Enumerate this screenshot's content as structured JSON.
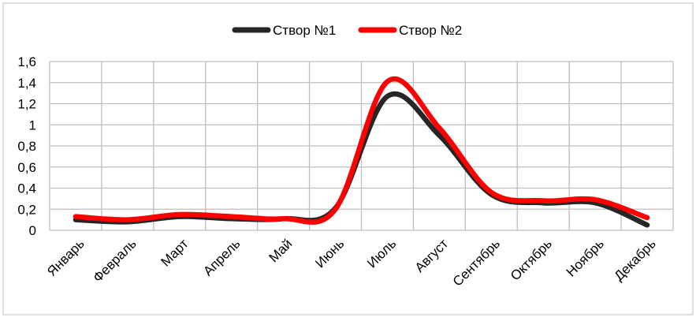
{
  "chart_data": {
    "type": "line",
    "title": "",
    "xlabel": "",
    "ylabel": "",
    "categories": [
      "Январь",
      "Февраль",
      "Март",
      "Апрель",
      "Май",
      "Июнь",
      "Июль",
      "Август",
      "Сентябрь",
      "Октябрь",
      "Ноябрь",
      "Декабрь"
    ],
    "ylim": [
      0,
      1.6
    ],
    "yticks": [
      "0",
      "0,2",
      "0,4",
      "0,6",
      "0,8",
      "1",
      "1,2",
      "1,4",
      "1,6"
    ],
    "grid": true,
    "legend_position": "top-center",
    "smooth": true,
    "series": [
      {
        "name": "Створ №1",
        "color": "#262626",
        "values": [
          0.1,
          0.08,
          0.13,
          0.11,
          0.11,
          0.21,
          1.27,
          0.9,
          0.34,
          0.26,
          0.26,
          0.05
        ]
      },
      {
        "name": "Створ №2",
        "color": "#ff0000",
        "values": [
          0.13,
          0.1,
          0.15,
          0.13,
          0.11,
          0.2,
          1.41,
          0.97,
          0.36,
          0.28,
          0.29,
          0.12
        ]
      }
    ]
  }
}
